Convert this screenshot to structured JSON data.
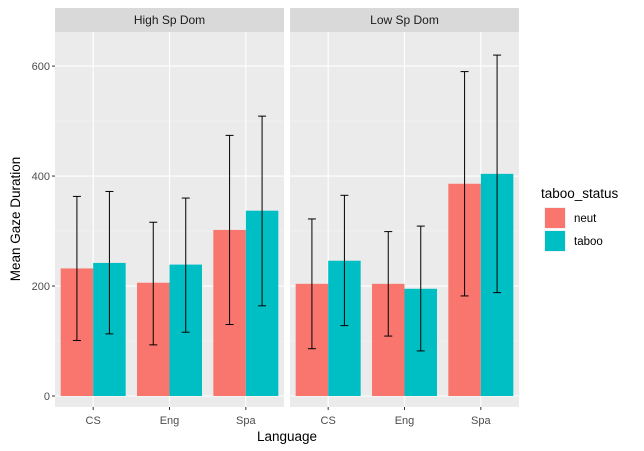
{
  "chart_data": {
    "type": "bar",
    "xlabel": "Language",
    "ylabel": "Mean Gaze Duration",
    "ylim": [
      -20,
      662
    ],
    "yticks": [
      0,
      200,
      400,
      600
    ],
    "categories": [
      "CS",
      "Eng",
      "Spa"
    ],
    "grid": true,
    "legend": {
      "title": "taboo_status",
      "position": "right",
      "entries": [
        {
          "name": "neut",
          "color": "#F8766D"
        },
        {
          "name": "taboo",
          "color": "#00BFC4"
        }
      ]
    },
    "panels": [
      {
        "title": "High Sp Dom",
        "series": [
          {
            "name": "neut",
            "color": "#F8766D",
            "values": [
              232,
              206,
              302
            ],
            "error_low": [
              101,
              93,
              130
            ],
            "error_high": [
              363,
              316,
              474
            ]
          },
          {
            "name": "taboo",
            "color": "#00BFC4",
            "values": [
              242,
              239,
              337
            ],
            "error_low": [
              113,
              116,
              164
            ],
            "error_high": [
              372,
              360,
              509
            ]
          }
        ]
      },
      {
        "title": "Low Sp Dom",
        "series": [
          {
            "name": "neut",
            "color": "#F8766D",
            "values": [
              204,
              204,
              386
            ],
            "error_low": [
              86,
              109,
              182
            ],
            "error_high": [
              322,
              299,
              590
            ]
          },
          {
            "name": "taboo",
            "color": "#00BFC4",
            "values": [
              246,
              195,
              404
            ],
            "error_low": [
              128,
              82,
              188
            ],
            "error_high": [
              365,
              309,
              620
            ]
          }
        ]
      }
    ]
  }
}
